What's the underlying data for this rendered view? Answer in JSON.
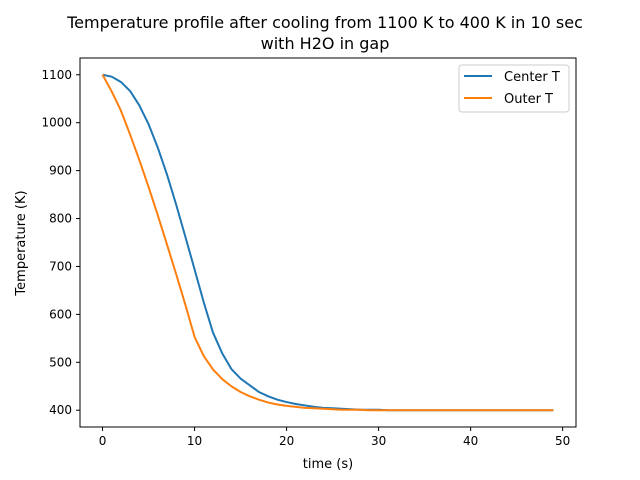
{
  "chart_data": {
    "type": "line",
    "title": "Temperature profile after cooling from 1100 K to 400 K in 10 sec",
    "subtitle": "with H2O in gap",
    "xlabel": "time (s)",
    "ylabel": "Temperature (K)",
    "xlim": [
      -2.45,
      51.45
    ],
    "ylim": [
      365,
      1135
    ],
    "xticks": [
      0,
      10,
      20,
      30,
      40,
      50
    ],
    "yticks": [
      400,
      500,
      600,
      700,
      800,
      900,
      1000,
      1100
    ],
    "grid": false,
    "legend_position": "top-right",
    "series": [
      {
        "name": "Center T",
        "color": "#1f77b4",
        "x": [
          0,
          1,
          2,
          3,
          4,
          5,
          6,
          7,
          8,
          9,
          10,
          11,
          12,
          13,
          14,
          15,
          16,
          17,
          18,
          19,
          20,
          21,
          22,
          23,
          24,
          25,
          26,
          27,
          28,
          29,
          30,
          31,
          32,
          33,
          34,
          35,
          36,
          37,
          38,
          39,
          40,
          41,
          42,
          43,
          44,
          45,
          46,
          47,
          48,
          49
        ],
        "y": [
          1100,
          1096,
          1085,
          1066,
          1036,
          997,
          948,
          892,
          829,
          762,
          694,
          625,
          562,
          519,
          486,
          466,
          452,
          438,
          429,
          422,
          417,
          413,
          410,
          407,
          405,
          404,
          403,
          402,
          401,
          401,
          401,
          400,
          400,
          400,
          400,
          400,
          400,
          400,
          400,
          400,
          400,
          400,
          400,
          400,
          400,
          400,
          400,
          400,
          400,
          400
        ]
      },
      {
        "name": "Outer T",
        "color": "#ff7f0e",
        "x": [
          0,
          1,
          2,
          3,
          4,
          5,
          6,
          7,
          8,
          9,
          10,
          11,
          12,
          13,
          14,
          15,
          16,
          17,
          18,
          19,
          20,
          21,
          22,
          23,
          24,
          25,
          26,
          27,
          28,
          29,
          30,
          31,
          32,
          33,
          34,
          35,
          36,
          37,
          38,
          39,
          40,
          41,
          42,
          43,
          44,
          45,
          46,
          47,
          48,
          49
        ],
        "y": [
          1100,
          1065,
          1025,
          975,
          922,
          866,
          807,
          746,
          684,
          620,
          553,
          513,
          485,
          465,
          450,
          438,
          429,
          422,
          416,
          412,
          409,
          407,
          405,
          404,
          403,
          402,
          401,
          401,
          401,
          400,
          400,
          400,
          400,
          400,
          400,
          400,
          400,
          400,
          400,
          400,
          400,
          400,
          400,
          400,
          400,
          400,
          400,
          400,
          400,
          400
        ]
      }
    ]
  }
}
